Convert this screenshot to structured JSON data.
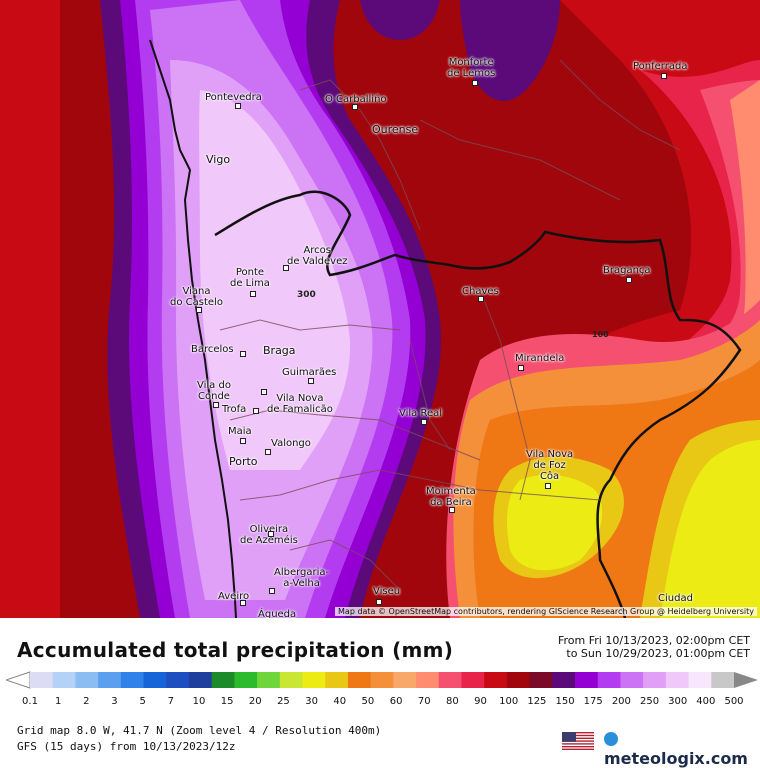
{
  "map": {
    "attribution": "Map data © OpenStreetMap contributors, rendering GIScience Research Group @ Heidelberg University",
    "contour_labels": [
      "300",
      "100"
    ],
    "places": [
      {
        "id": "monforte",
        "label": "Monforte\nde Lemos"
      },
      {
        "id": "ponferrada",
        "label": "Ponferrada"
      },
      {
        "id": "pontevedra",
        "label": "Pontevedra"
      },
      {
        "id": "ocarballino",
        "label": "O Carballiño"
      },
      {
        "id": "ourense",
        "label": "Ourense"
      },
      {
        "id": "vigo",
        "label": "Vigo"
      },
      {
        "id": "arcos",
        "label": "Arcos\nde Valdevez"
      },
      {
        "id": "pontelima",
        "label": "Ponte\nde Lima"
      },
      {
        "id": "viana",
        "label": "Viana\ndo Castelo"
      },
      {
        "id": "chaves",
        "label": "Chaves"
      },
      {
        "id": "braganca",
        "label": "Bragança"
      },
      {
        "id": "barcelos",
        "label": "Barcelos"
      },
      {
        "id": "braga",
        "label": "Braga"
      },
      {
        "id": "mirandela",
        "label": "Mirandela"
      },
      {
        "id": "guimaraes",
        "label": "Guimarães"
      },
      {
        "id": "viladoconde",
        "label": "Vila do\nConde"
      },
      {
        "id": "trofa",
        "label": "Trofa"
      },
      {
        "id": "famalicao",
        "label": "Vila Nova\nde Famalicão"
      },
      {
        "id": "vilareal",
        "label": "Vila Real"
      },
      {
        "id": "maia",
        "label": "Maia"
      },
      {
        "id": "valongo",
        "label": "Valongo"
      },
      {
        "id": "porto",
        "label": "Porto"
      },
      {
        "id": "fozcoa",
        "label": "Vila Nova\nde Foz\nCôa"
      },
      {
        "id": "moimenta",
        "label": "Moimenta\nda Beira"
      },
      {
        "id": "oliveira",
        "label": "Oliveira\nde Azeméis"
      },
      {
        "id": "albergaria",
        "label": "Albergaria-\na-Velha"
      },
      {
        "id": "aveiro",
        "label": "Aveiro"
      },
      {
        "id": "viseu",
        "label": "Viseu"
      },
      {
        "id": "ciudad",
        "label": "Ciudad"
      },
      {
        "id": "agueda",
        "label": "Águeda"
      }
    ]
  },
  "footer": {
    "title": "Accumulated total precipitation (mm)",
    "period_from": "From Fri 10/13/2023, 02:00pm CET",
    "period_to": "to Sun 10/29/2023, 01:00pm CET",
    "grid_info": "Grid map 8.0 W, 41.7 N (Zoom level 4 / Resolution 400m)",
    "model_info": "GFS (15 days) from 10/13/2023/12z",
    "brand": "meteologix.com",
    "flag_icon": "us-flag-icon"
  },
  "legend": {
    "colors": [
      "#dcdcf5",
      "#b4d2f8",
      "#8cbdf2",
      "#5aa0ee",
      "#2f83e8",
      "#1565d8",
      "#1e4fc0",
      "#1f3f9e",
      "#1c8a2a",
      "#2cbb2c",
      "#6ed63a",
      "#c8e632",
      "#ecec14",
      "#e8c814",
      "#f07814",
      "#f5903a",
      "#f8a868",
      "#ff8c6e",
      "#f55070",
      "#e8244a",
      "#c80a14",
      "#a0060c",
      "#7a0a28",
      "#5c0a7a",
      "#9400d3",
      "#b43cf0",
      "#cc72f5",
      "#e0a0f8",
      "#f0c8fa",
      "#f8e6fc",
      "#c8c8c8"
    ],
    "ticks": [
      "0.1",
      "1",
      "2",
      "3",
      "5",
      "7",
      "10",
      "15",
      "20",
      "25",
      "30",
      "40",
      "50",
      "60",
      "70",
      "80",
      "90",
      "100",
      "125",
      "150",
      "175",
      "200",
      "250",
      "300",
      "400",
      "500"
    ]
  }
}
